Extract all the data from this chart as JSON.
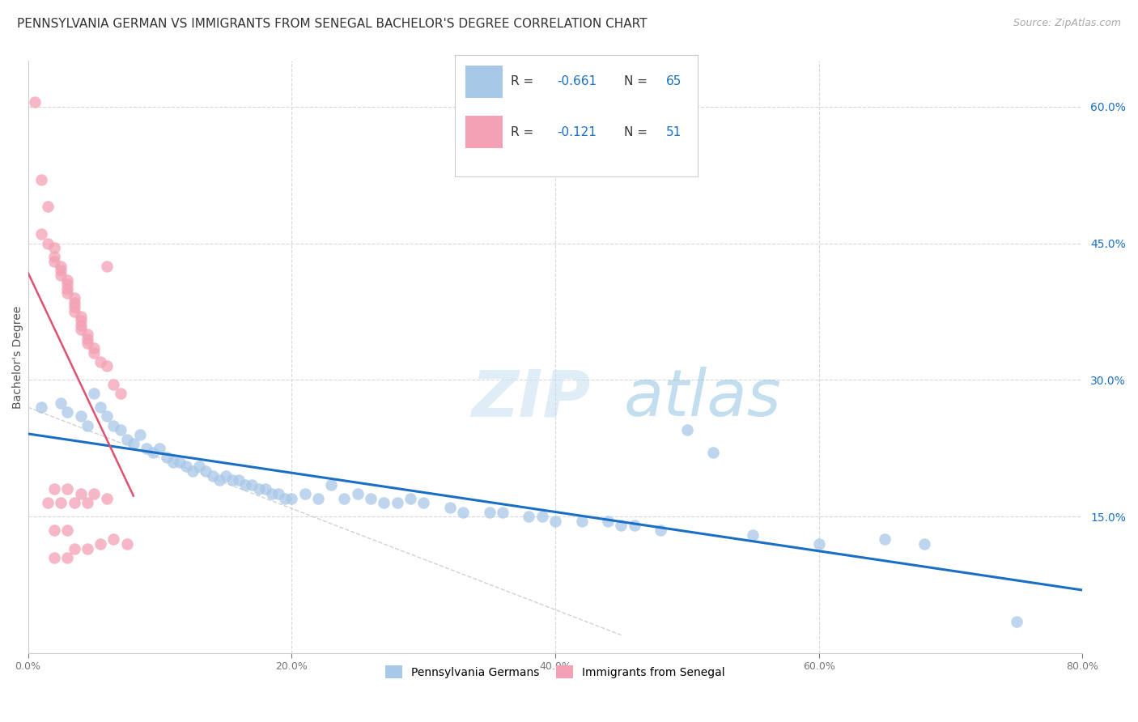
{
  "title": "PENNSYLVANIA GERMAN VS IMMIGRANTS FROM SENEGAL BACHELOR'S DEGREE CORRELATION CHART",
  "source": "Source: ZipAtlas.com",
  "ylabel": "Bachelor's Degree",
  "watermark_zip": "ZIP",
  "watermark_atlas": "atlas",
  "blue_R": -0.661,
  "blue_N": 65,
  "pink_R": -0.121,
  "pink_N": 51,
  "blue_color": "#a8c8e8",
  "pink_color": "#f4a0b5",
  "blue_line_color": "#1a6fc4",
  "pink_line_color": "#e05070",
  "ref_line_color": "#cccccc",
  "blue_scatter": [
    [
      1.0,
      27.0
    ],
    [
      2.5,
      27.5
    ],
    [
      3.0,
      26.5
    ],
    [
      4.0,
      26.0
    ],
    [
      4.5,
      25.0
    ],
    [
      5.0,
      28.5
    ],
    [
      5.5,
      27.0
    ],
    [
      6.0,
      26.0
    ],
    [
      6.5,
      25.0
    ],
    [
      7.0,
      24.5
    ],
    [
      7.5,
      23.5
    ],
    [
      8.0,
      23.0
    ],
    [
      8.5,
      24.0
    ],
    [
      9.0,
      22.5
    ],
    [
      9.5,
      22.0
    ],
    [
      10.0,
      22.5
    ],
    [
      10.5,
      21.5
    ],
    [
      11.0,
      21.0
    ],
    [
      11.5,
      21.0
    ],
    [
      12.0,
      20.5
    ],
    [
      12.5,
      20.0
    ],
    [
      13.0,
      20.5
    ],
    [
      13.5,
      20.0
    ],
    [
      14.0,
      19.5
    ],
    [
      14.5,
      19.0
    ],
    [
      15.0,
      19.5
    ],
    [
      15.5,
      19.0
    ],
    [
      16.0,
      19.0
    ],
    [
      16.5,
      18.5
    ],
    [
      17.0,
      18.5
    ],
    [
      17.5,
      18.0
    ],
    [
      18.0,
      18.0
    ],
    [
      18.5,
      17.5
    ],
    [
      19.0,
      17.5
    ],
    [
      19.5,
      17.0
    ],
    [
      20.0,
      17.0
    ],
    [
      21.0,
      17.5
    ],
    [
      22.0,
      17.0
    ],
    [
      23.0,
      18.5
    ],
    [
      24.0,
      17.0
    ],
    [
      25.0,
      17.5
    ],
    [
      26.0,
      17.0
    ],
    [
      27.0,
      16.5
    ],
    [
      28.0,
      16.5
    ],
    [
      29.0,
      17.0
    ],
    [
      30.0,
      16.5
    ],
    [
      32.0,
      16.0
    ],
    [
      33.0,
      15.5
    ],
    [
      35.0,
      15.5
    ],
    [
      36.0,
      15.5
    ],
    [
      38.0,
      15.0
    ],
    [
      39.0,
      15.0
    ],
    [
      40.0,
      14.5
    ],
    [
      42.0,
      14.5
    ],
    [
      44.0,
      14.5
    ],
    [
      45.0,
      14.0
    ],
    [
      46.0,
      14.0
    ],
    [
      48.0,
      13.5
    ],
    [
      50.0,
      24.5
    ],
    [
      52.0,
      22.0
    ],
    [
      55.0,
      13.0
    ],
    [
      60.0,
      12.0
    ],
    [
      65.0,
      12.5
    ],
    [
      68.0,
      12.0
    ],
    [
      75.0,
      3.5
    ]
  ],
  "pink_scatter": [
    [
      0.5,
      60.5
    ],
    [
      1.0,
      52.0
    ],
    [
      1.5,
      49.0
    ],
    [
      1.0,
      46.0
    ],
    [
      1.5,
      45.0
    ],
    [
      2.0,
      44.5
    ],
    [
      2.0,
      43.5
    ],
    [
      2.0,
      43.0
    ],
    [
      2.5,
      42.5
    ],
    [
      2.5,
      42.0
    ],
    [
      2.5,
      41.5
    ],
    [
      3.0,
      41.0
    ],
    [
      3.0,
      40.5
    ],
    [
      3.0,
      40.0
    ],
    [
      3.0,
      39.5
    ],
    [
      3.5,
      39.0
    ],
    [
      3.5,
      38.5
    ],
    [
      3.5,
      38.0
    ],
    [
      3.5,
      37.5
    ],
    [
      4.0,
      37.0
    ],
    [
      4.0,
      36.5
    ],
    [
      4.0,
      36.0
    ],
    [
      4.0,
      35.5
    ],
    [
      4.5,
      35.0
    ],
    [
      4.5,
      34.5
    ],
    [
      4.5,
      34.0
    ],
    [
      5.0,
      33.5
    ],
    [
      5.0,
      33.0
    ],
    [
      5.5,
      32.0
    ],
    [
      6.0,
      31.5
    ],
    [
      6.0,
      42.5
    ],
    [
      6.5,
      29.5
    ],
    [
      7.0,
      28.5
    ],
    [
      2.0,
      18.0
    ],
    [
      3.0,
      18.0
    ],
    [
      4.0,
      17.5
    ],
    [
      5.0,
      17.5
    ],
    [
      6.0,
      17.0
    ],
    [
      1.5,
      16.5
    ],
    [
      2.5,
      16.5
    ],
    [
      3.5,
      16.5
    ],
    [
      4.5,
      16.5
    ],
    [
      2.0,
      13.5
    ],
    [
      3.0,
      13.5
    ],
    [
      3.5,
      11.5
    ],
    [
      4.5,
      11.5
    ],
    [
      2.0,
      10.5
    ],
    [
      3.0,
      10.5
    ],
    [
      5.5,
      12.0
    ],
    [
      6.5,
      12.5
    ],
    [
      7.5,
      12.0
    ]
  ],
  "xlim": [
    0,
    80
  ],
  "ylim": [
    0,
    65
  ],
  "xticks": [
    0,
    20,
    40,
    60,
    80
  ],
  "xtick_labels": [
    "0.0%",
    "20.0%",
    "40.0%",
    "60.0%",
    "80.0%"
  ],
  "ytick_positions_right": [
    15,
    30,
    45,
    60
  ],
  "ytick_labels_right": [
    "15.0%",
    "30.0%",
    "45.0%",
    "60.0%"
  ],
  "grid_color": "#d8d8d8",
  "background_color": "#ffffff",
  "title_fontsize": 11,
  "legend_label_blue": "Pennsylvania Germans",
  "legend_label_pink": "Immigrants from Senegal"
}
